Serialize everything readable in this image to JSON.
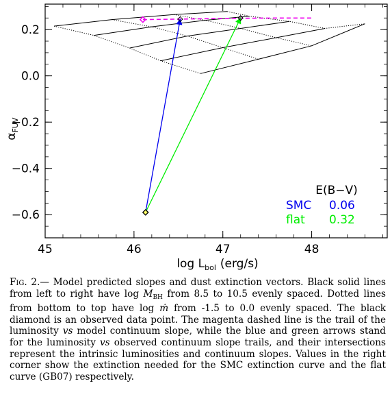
{
  "chart_data": {
    "type": "line",
    "xlabel": "log L",
    "xlabel_sub": "bol",
    "xlabel_unit": "(erg/s)",
    "ylabel": "α",
    "ylabel_sub": "FUV",
    "xlim": [
      45,
      48.85
    ],
    "ylim": [
      -0.7,
      0.31
    ],
    "x_ticks": [
      45,
      46,
      47,
      48
    ],
    "y_ticks": [
      0.2,
      0.0,
      -0.2,
      -0.4,
      -0.6
    ],
    "y_tick_labels": [
      "0.2",
      "0.0",
      "−0.2",
      "−0.4",
      "−0.6"
    ],
    "grid": false,
    "solid_lines": [
      [
        [
          45.1,
          0.215
        ],
        [
          45.75,
          0.243
        ],
        [
          46.45,
          0.265
        ],
        [
          47.05,
          0.278
        ]
      ],
      [
        [
          45.55,
          0.175
        ],
        [
          46.2,
          0.212
        ],
        [
          46.8,
          0.24
        ],
        [
          47.3,
          0.258
        ]
      ],
      [
        [
          45.95,
          0.12
        ],
        [
          46.6,
          0.172
        ],
        [
          47.2,
          0.205
        ],
        [
          47.75,
          0.235
        ]
      ],
      [
        [
          46.3,
          0.065
        ],
        [
          47.0,
          0.122
        ],
        [
          47.6,
          0.165
        ],
        [
          48.15,
          0.205
        ]
      ],
      [
        [
          46.75,
          0.01
        ],
        [
          47.4,
          0.072
        ],
        [
          48.0,
          0.13
        ],
        [
          48.6,
          0.225
        ]
      ]
    ],
    "dotted_lines": [
      [
        [
          45.1,
          0.215
        ],
        [
          45.55,
          0.175
        ],
        [
          45.95,
          0.12
        ],
        [
          46.3,
          0.065
        ],
        [
          46.75,
          0.01
        ]
      ],
      [
        [
          45.75,
          0.243
        ],
        [
          46.2,
          0.212
        ],
        [
          46.6,
          0.172
        ],
        [
          47.0,
          0.122
        ],
        [
          47.4,
          0.072
        ]
      ],
      [
        [
          46.45,
          0.265
        ],
        [
          46.8,
          0.24
        ],
        [
          47.2,
          0.205
        ],
        [
          47.6,
          0.165
        ],
        [
          48.0,
          0.13
        ]
      ],
      [
        [
          47.05,
          0.278
        ],
        [
          47.3,
          0.258
        ],
        [
          47.75,
          0.235
        ],
        [
          48.15,
          0.205
        ],
        [
          48.6,
          0.225
        ]
      ]
    ],
    "magenta_trail": [
      [
        46.1,
        0.243
      ],
      [
        46.5,
        0.245
      ],
      [
        47.0,
        0.248
      ],
      [
        47.6,
        0.25
      ],
      [
        48.0,
        0.25
      ]
    ],
    "observed_point": {
      "x": 46.13,
      "y": -0.59
    },
    "arrows": [
      {
        "name": "SMC",
        "color": "#0000ee",
        "from": [
          46.13,
          -0.59
        ],
        "to": [
          46.52,
          0.245
        ]
      },
      {
        "name": "flat",
        "color": "#00ee00",
        "from": [
          46.13,
          -0.59
        ],
        "to": [
          47.2,
          0.25
        ]
      }
    ],
    "legend": {
      "heading": "E(B−V)",
      "rows": [
        {
          "label": "SMC",
          "value": "0.06",
          "color": "#0000ee"
        },
        {
          "label": "flat",
          "value": "0.32",
          "color": "#00ee00"
        }
      ],
      "placement": "bottom-right"
    }
  },
  "caption": {
    "fig_label": "Fig. 2.",
    "segments": [
      {
        "t": "Model predicted slopes and dust extinction vectors. Black solid lines from left to right have log "
      },
      {
        "t": "M",
        "i": true
      },
      {
        "t": "BH",
        "sub": true
      },
      {
        "t": " from 8.5 to 10.5 evenly spaced. Dotted lines from bottom to top have log "
      },
      {
        "t": "ṁ",
        "i": true
      },
      {
        "t": " from -1.5 to 0.0 evenly spaced. The black diamond is an observed data point. The magenta dashed line is the trail of the luminosity "
      },
      {
        "t": "vs",
        "i": true
      },
      {
        "t": " model continuum slope, while the blue and green arrows stand for the luminosity "
      },
      {
        "t": "vs",
        "i": true
      },
      {
        "t": " observed continuum slope trails, and their intersections represent the intrinsic luminosities and continuum slopes. Values in the right corner show the extinction needed for the SMC extinction curve and the flat curve (GB07) respectively."
      }
    ]
  }
}
